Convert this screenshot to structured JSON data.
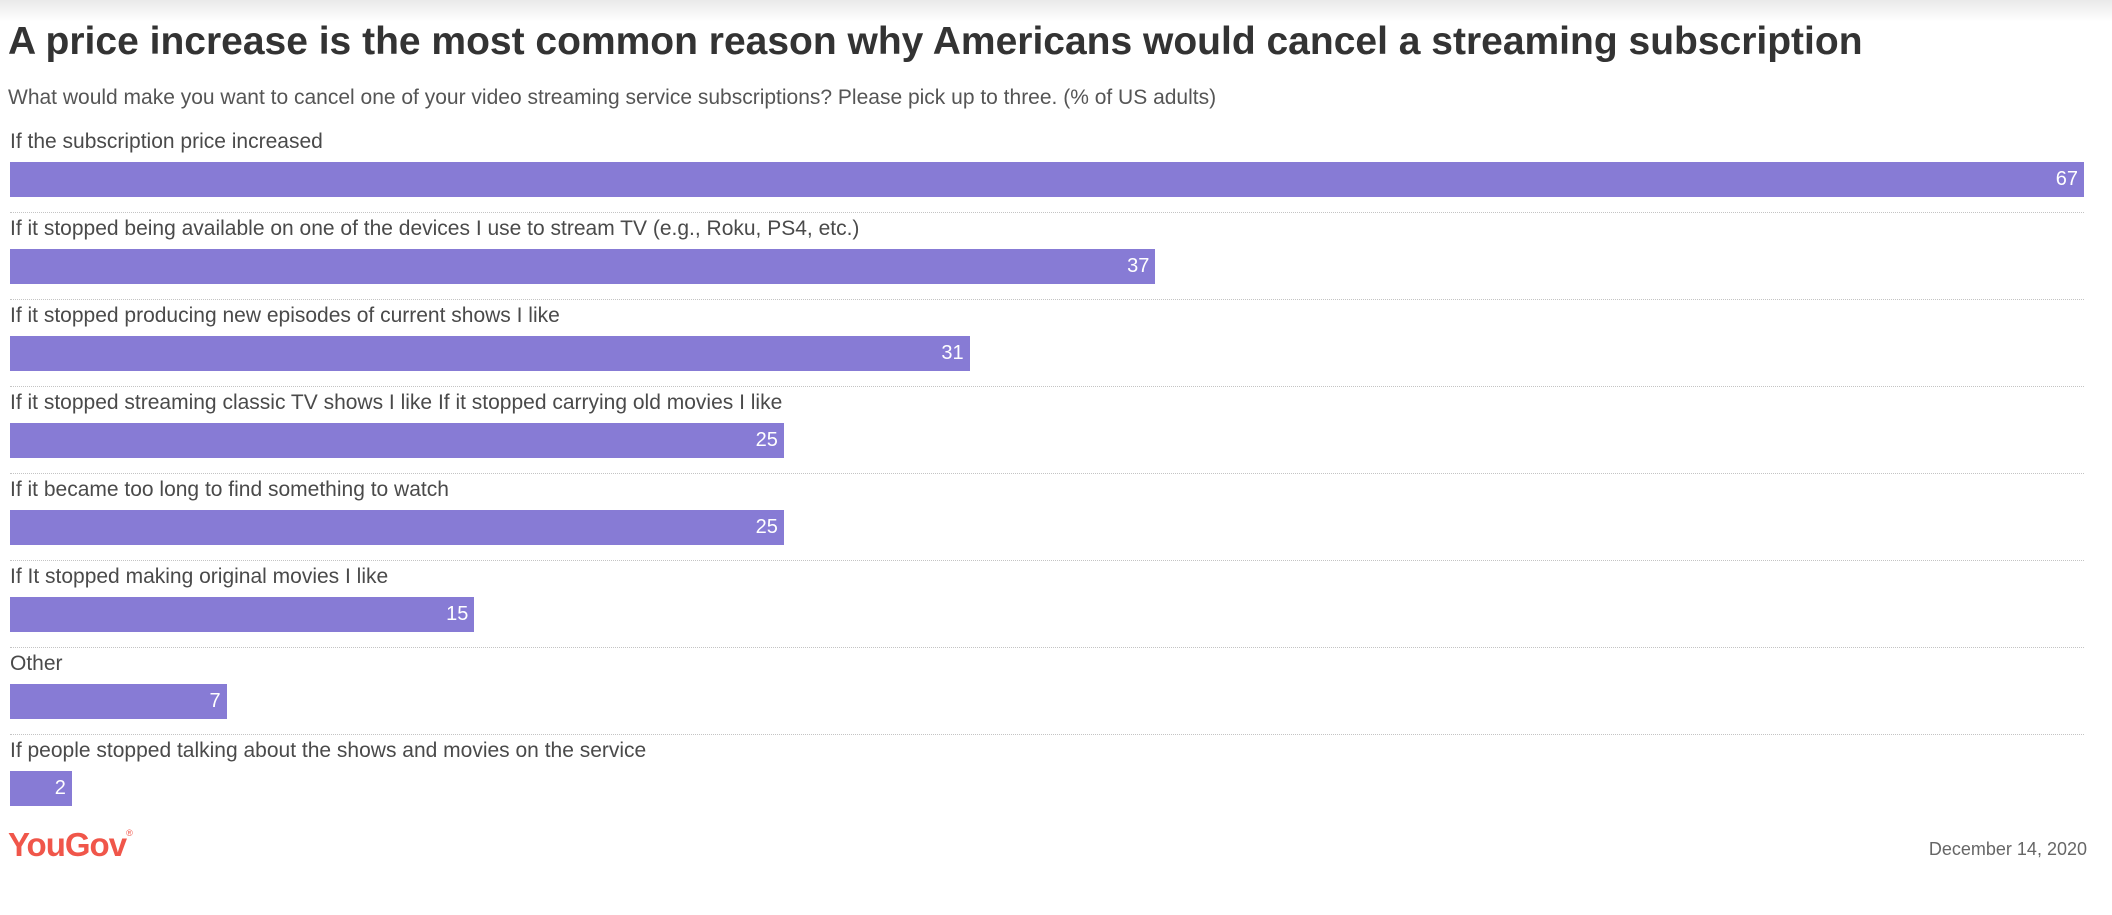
{
  "chart_data": {
    "type": "bar",
    "orientation": "horizontal",
    "title": "A price increase is the most common reason why Americans would cancel a streaming subscription",
    "subtitle": "What would make you want to cancel one of your video streaming service subscriptions? Please pick up to three. (% of US adults)",
    "categories": [
      "If the subscription price increased",
      "If it stopped being available on one of the devices I use to stream TV (e.g., Roku, PS4, etc.)",
      "If it stopped producing new episodes of current shows I like",
      "If it stopped streaming classic TV shows I like If it stopped carrying old movies I like",
      "If it became too long to find something to watch",
      "If It stopped making original movies I like",
      "Other",
      "If people stopped talking about the shows and movies on the service"
    ],
    "values": [
      67,
      37,
      31,
      25,
      25,
      15,
      7,
      2
    ],
    "xlim": [
      0,
      67
    ],
    "bar_color": "#877bd5",
    "grid": false
  },
  "footer": {
    "logo": "YouGov",
    "date": "December 14, 2020"
  },
  "colors": {
    "brand": "#f0564a",
    "bar": "#877bd5"
  }
}
